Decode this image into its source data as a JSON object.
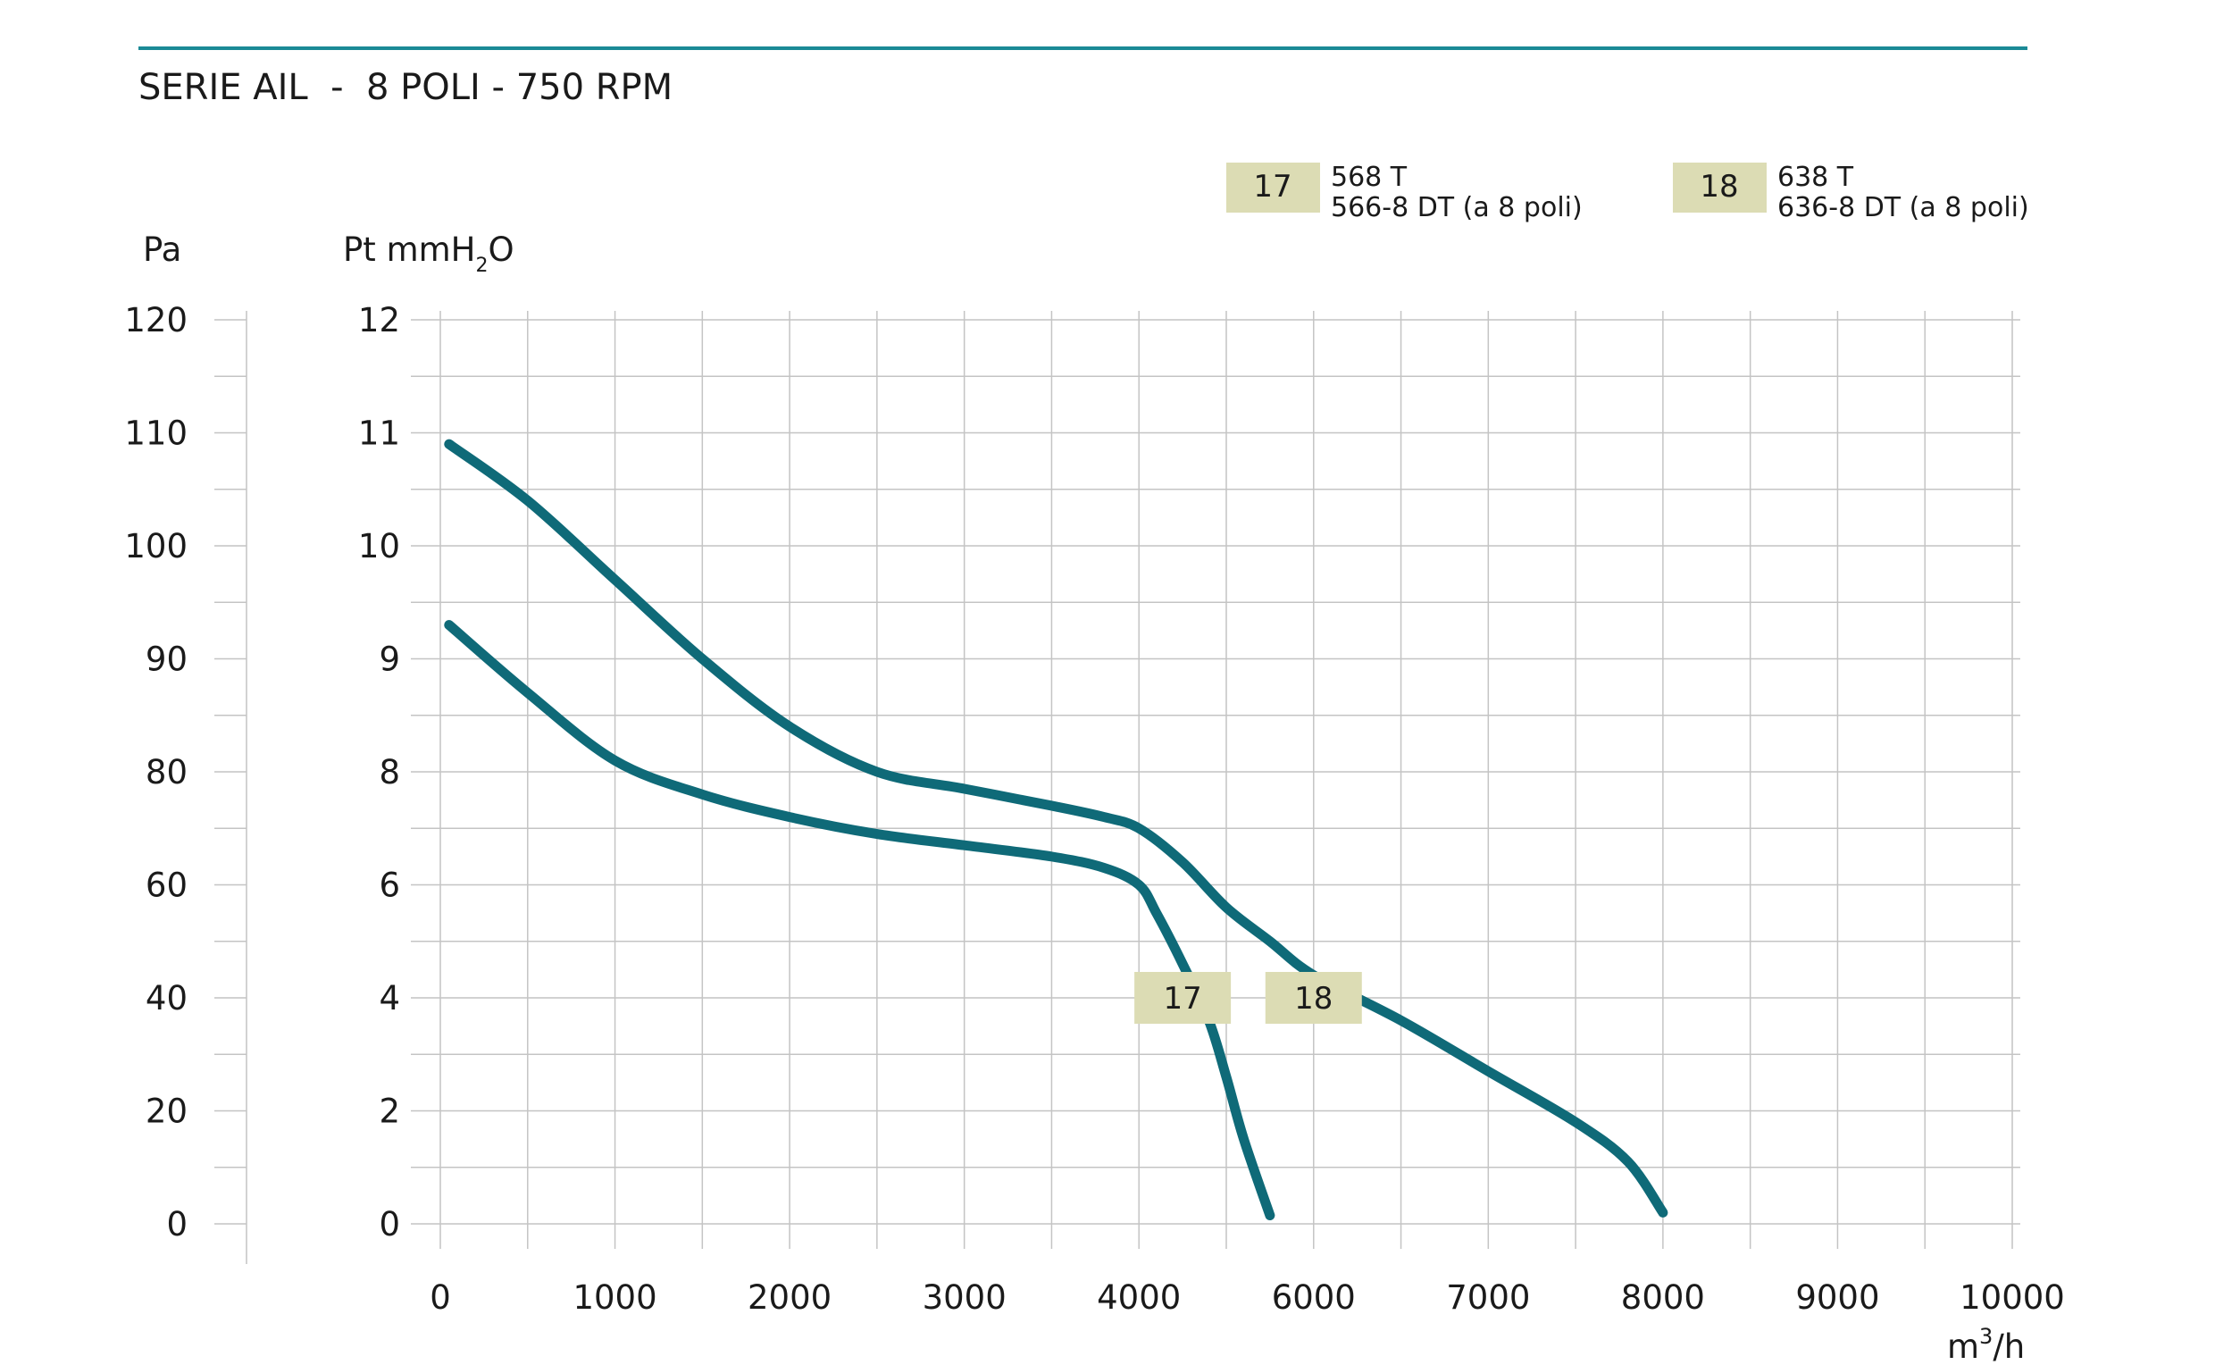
{
  "chart_data": {
    "type": "line",
    "title": "SERIE AIL  -  8 POLI - 750 RPM",
    "xlabel": "m3/h",
    "xlabel_base": "m",
    "xlabel_sup": "3",
    "xlabel_tail": "/h",
    "ylabel_pa": "Pa",
    "ylabel_mm": "Pt mmH2O",
    "ylabel_mm_base": "Pt mmH",
    "ylabel_mm_sub": "2",
    "ylabel_mm_tail": "O",
    "x_ticks": [
      "0",
      "1000",
      "2000",
      "3000",
      "4000",
      "6000",
      "7000",
      "8000",
      "9000",
      "10000"
    ],
    "y_ticks_mm": [
      "0",
      "2",
      "4",
      "6",
      "8",
      "9",
      "10",
      "11",
      "12"
    ],
    "y_ticks_pa": [
      "0",
      "20",
      "40",
      "60",
      "80",
      "90",
      "100",
      "110",
      "120"
    ],
    "grid": true,
    "accent_color": "#1b8a96",
    "curve_color": "#0f6a78",
    "badge_color": "#dcdcb4",
    "legend": [
      {
        "id": "17",
        "line1": "568 T",
        "line2": "566-8 DT (a 8 poli)"
      },
      {
        "id": "18",
        "line1": "638 T",
        "line2": "636-8 DT (a 8 poli)"
      }
    ],
    "series": [
      {
        "name": "17",
        "label_at": {
          "x": 4500,
          "y": 4
        },
        "x": [
          50,
          500,
          1000,
          1500,
          2000,
          2500,
          3000,
          3500,
          3800,
          4000,
          4200,
          4500,
          4800,
          5000,
          5200,
          5500
        ],
        "y": [
          9.3,
          8.7,
          8.1,
          7.6,
          7.2,
          6.9,
          6.7,
          6.5,
          6.3,
          6.0,
          5.5,
          4.6,
          3.6,
          2.6,
          1.5,
          0.15
        ]
      },
      {
        "name": "18",
        "label_at": {
          "x": 6000,
          "y": 4
        },
        "x": [
          50,
          500,
          1000,
          1500,
          2000,
          2500,
          3000,
          3500,
          3800,
          4000,
          4500,
          5000,
          5500,
          6000,
          6500,
          7000,
          7500,
          7800,
          8000
        ],
        "y": [
          10.9,
          10.4,
          9.7,
          9.0,
          8.4,
          8.0,
          7.7,
          7.4,
          7.2,
          7.0,
          6.4,
          5.6,
          5.0,
          4.4,
          3.6,
          2.7,
          1.8,
          1.1,
          0.2
        ]
      }
    ]
  }
}
